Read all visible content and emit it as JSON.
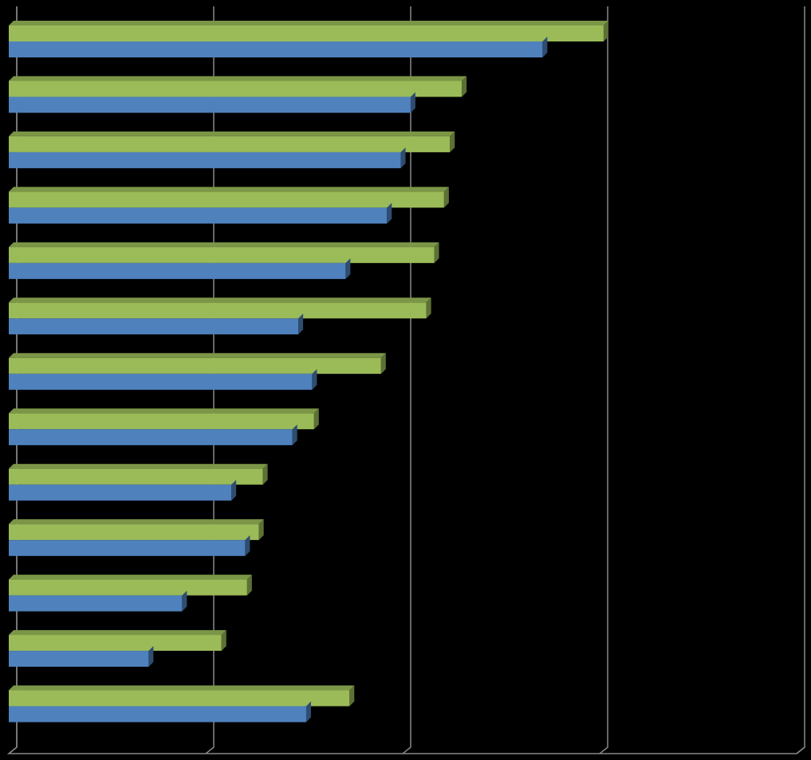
{
  "chart_data": {
    "type": "bar3d_horizontal",
    "categories": [
      null,
      null,
      null,
      null,
      null,
      null,
      null,
      null,
      null,
      null,
      null,
      null,
      null
    ],
    "series": [
      {
        "color": "#9bbb59",
        "values": [
          3.02,
          2.3,
          2.24,
          2.21,
          2.16,
          2.12,
          1.89,
          1.55,
          1.29,
          1.27,
          1.21,
          1.08,
          1.73
        ]
      },
      {
        "color": "#4f81bd",
        "values": [
          2.71,
          2.04,
          1.99,
          1.92,
          1.71,
          1.47,
          1.54,
          1.44,
          1.13,
          1.2,
          0.88,
          0.71,
          1.51
        ]
      }
    ],
    "xlim": [
      0,
      4
    ],
    "xticks": [
      0,
      1,
      2,
      3,
      4
    ],
    "grid": true
  }
}
